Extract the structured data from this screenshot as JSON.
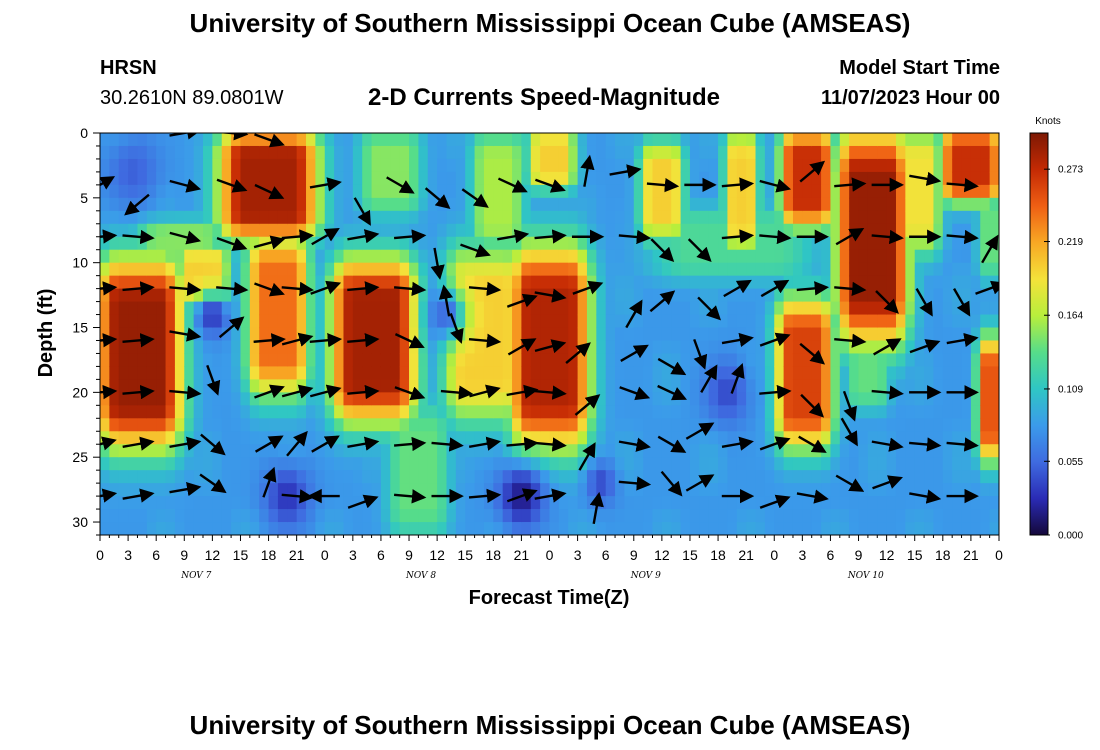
{
  "header": {
    "title": "University of Southern Mississippi Ocean Cube (AMSEAS)",
    "station": "HRSN",
    "location": "30.2610N  89.0801W",
    "subtitle": "2-D Currents Speed-Magnitude",
    "model_start_label": "Model Start Time",
    "model_start_value": "11/07/2023 Hour 00"
  },
  "footer": {
    "title": "University of Southern Mississippi Ocean Cube (AMSEAS)"
  },
  "chart_data": {
    "type": "heatmap",
    "xlabel": "Forecast Time(Z)",
    "ylabel": "Depth (ft)",
    "x_ticks": [
      "0",
      "3",
      "6",
      "9",
      "12",
      "15",
      "18",
      "21",
      "0",
      "3",
      "6",
      "9",
      "12",
      "15",
      "18",
      "21",
      "0",
      "3",
      "6",
      "9",
      "12",
      "15",
      "18",
      "21",
      "0",
      "3",
      "6",
      "9",
      "12",
      "15",
      "18",
      "21",
      "0"
    ],
    "x_hours_range": [
      0,
      96
    ],
    "day_labels": [
      {
        "label": "NOV 7",
        "hour": 9
      },
      {
        "label": "NOV 8",
        "hour": 33
      },
      {
        "label": "NOV 9",
        "hour": 57
      },
      {
        "label": "NOV 10",
        "hour": 80.5
      }
    ],
    "y_ticks": [
      0,
      5,
      10,
      15,
      20,
      25,
      30
    ],
    "y_range": [
      0,
      31
    ],
    "y_inverted": true,
    "colorbar": {
      "unit": "Knots",
      "ticks": [
        "0.273",
        "0.219",
        "0.164",
        "0.109",
        "0.055",
        "0.000"
      ],
      "tick_values": [
        0.273,
        0.219,
        0.164,
        0.109,
        0.055,
        0.0
      ],
      "range": [
        0.0,
        0.3
      ],
      "colors": [
        "#14083a",
        "#2a2bb5",
        "#3f6be0",
        "#3b9bea",
        "#2fc6c4",
        "#56dd8a",
        "#b8ee3c",
        "#f4e23a",
        "#f8a824",
        "#ef5f14",
        "#c42a04",
        "#7d1904"
      ]
    },
    "speed_blobs": [
      {
        "x0": 0,
        "x1": 8.5,
        "y0": 10,
        "y1": 24,
        "v": 0.29
      },
      {
        "x0": 8.5,
        "x1": 13.5,
        "y0": 9,
        "y1": 13,
        "v": 0.2
      },
      {
        "x0": 13,
        "x1": 23,
        "y0": 0,
        "y1": 8,
        "v": 0.285
      },
      {
        "x0": 16,
        "x1": 22,
        "y0": 8,
        "y1": 20,
        "v": 0.24
      },
      {
        "x0": 4,
        "x1": 13,
        "y0": 7,
        "y1": 10,
        "v": 0.15
      },
      {
        "x0": 25,
        "x1": 33.5,
        "y0": 10,
        "y1": 22,
        "v": 0.285
      },
      {
        "x0": 28,
        "x1": 34,
        "y0": 0,
        "y1": 6,
        "v": 0.15
      },
      {
        "x0": 40,
        "x1": 45,
        "y0": 0,
        "y1": 9,
        "v": 0.16
      },
      {
        "x0": 37,
        "x1": 45,
        "y0": 9,
        "y1": 22,
        "v": 0.2
      },
      {
        "x0": 44,
        "x1": 52,
        "y0": 9,
        "y1": 24,
        "v": 0.28
      },
      {
        "x0": 46,
        "x1": 50.5,
        "y0": 0,
        "y1": 4,
        "v": 0.2
      },
      {
        "x0": 58,
        "x1": 62,
        "y0": 1,
        "y1": 8,
        "v": 0.2
      },
      {
        "x0": 67,
        "x1": 70,
        "y0": 0,
        "y1": 9,
        "v": 0.2
      },
      {
        "x0": 73,
        "x1": 78,
        "y0": 0,
        "y1": 7,
        "v": 0.27
      },
      {
        "x0": 72.5,
        "x1": 78,
        "y0": 13,
        "y1": 24,
        "v": 0.26
      },
      {
        "x0": 79,
        "x1": 86,
        "y0": 0,
        "y1": 16,
        "v": 0.29
      },
      {
        "x0": 85,
        "x1": 89.5,
        "y0": 0,
        "y1": 9,
        "v": 0.19
      },
      {
        "x0": 90,
        "x1": 96,
        "y0": 0,
        "y1": 5,
        "v": 0.27
      },
      {
        "x0": 94,
        "x1": 96,
        "y0": 16,
        "y1": 25,
        "v": 0.25
      },
      {
        "x0": 94,
        "x1": 96,
        "y0": 5,
        "y1": 11,
        "v": 0.14
      },
      {
        "x0": 80,
        "x1": 84,
        "y0": 16,
        "y1": 21,
        "v": 0.14
      },
      {
        "x0": 59,
        "x1": 76,
        "y0": 6,
        "y1": 11,
        "v": 0.13
      },
      {
        "x0": 31,
        "x1": 37,
        "y0": 21,
        "y1": 31,
        "v": 0.14
      }
    ],
    "low_spots": [
      {
        "x": 3.5,
        "y": 3,
        "r": 3.5,
        "v": 0.05
      },
      {
        "x": 12,
        "y": 14,
        "r": 2,
        "v": 0.03
      },
      {
        "x": 20,
        "y": 28,
        "r": 3,
        "v": 0.03
      },
      {
        "x": 45,
        "y": 28,
        "r": 3,
        "v": 0.015
      },
      {
        "x": 53.5,
        "y": 27,
        "r": 2,
        "v": 0.04
      },
      {
        "x": 67,
        "y": 20,
        "r": 3,
        "v": 0.04
      },
      {
        "x": 37,
        "y": 14,
        "r": 2.5,
        "v": 0.05
      }
    ],
    "vectors": [
      {
        "t": 0,
        "d": 4,
        "a": -30
      },
      {
        "t": 4,
        "d": 5.5,
        "a": 140
      },
      {
        "t": 9,
        "d": 0,
        "a": -10
      },
      {
        "t": 14,
        "d": 0,
        "a": 5
      },
      {
        "t": 18,
        "d": 0.5,
        "a": 20
      },
      {
        "t": 9,
        "d": 4,
        "a": 15
      },
      {
        "t": 14,
        "d": 4,
        "a": 20
      },
      {
        "t": 18,
        "d": 4.5,
        "a": 25
      },
      {
        "t": 0,
        "d": 8,
        "a": -5
      },
      {
        "t": 4,
        "d": 8,
        "a": 5
      },
      {
        "t": 9,
        "d": 8,
        "a": 15
      },
      {
        "t": 14,
        "d": 8.5,
        "a": 20
      },
      {
        "t": 18,
        "d": 8.5,
        "a": -15
      },
      {
        "t": 21,
        "d": 8,
        "a": -5
      },
      {
        "t": 0,
        "d": 12,
        "a": -5
      },
      {
        "t": 4,
        "d": 12,
        "a": -5
      },
      {
        "t": 9,
        "d": 12,
        "a": 5
      },
      {
        "t": 14,
        "d": 12,
        "a": 5
      },
      {
        "t": 18,
        "d": 12,
        "a": 20
      },
      {
        "t": 21,
        "d": 12,
        "a": 5
      },
      {
        "t": 0,
        "d": 16,
        "a": -5
      },
      {
        "t": 4,
        "d": 16,
        "a": -5
      },
      {
        "t": 9,
        "d": 15.5,
        "a": 10
      },
      {
        "t": 14,
        "d": 15,
        "a": -40
      },
      {
        "t": 18,
        "d": 16,
        "a": -5
      },
      {
        "t": 21,
        "d": 16,
        "a": -15
      },
      {
        "t": 0,
        "d": 20,
        "a": -5
      },
      {
        "t": 4,
        "d": 20,
        "a": -5
      },
      {
        "t": 9,
        "d": 20,
        "a": 5
      },
      {
        "t": 12,
        "d": 19,
        "a": 70
      },
      {
        "t": 18,
        "d": 20,
        "a": -20
      },
      {
        "t": 21,
        "d": 20,
        "a": -15
      },
      {
        "t": 0,
        "d": 24,
        "a": -15
      },
      {
        "t": 4,
        "d": 24,
        "a": -10
      },
      {
        "t": 9,
        "d": 24,
        "a": -10
      },
      {
        "t": 12,
        "d": 24,
        "a": 40
      },
      {
        "t": 18,
        "d": 24,
        "a": -30
      },
      {
        "t": 21,
        "d": 24,
        "a": -50
      },
      {
        "t": 0,
        "d": 28,
        "a": -10
      },
      {
        "t": 4,
        "d": 28,
        "a": -10
      },
      {
        "t": 9,
        "d": 27.5,
        "a": -10
      },
      {
        "t": 12,
        "d": 27,
        "a": 35
      },
      {
        "t": 18,
        "d": 27,
        "a": -70
      },
      {
        "t": 21,
        "d": 28,
        "a": 5
      },
      {
        "t": 24,
        "d": 4,
        "a": -10
      },
      {
        "t": 28,
        "d": 6,
        "a": 60
      },
      {
        "t": 32,
        "d": 4,
        "a": 30
      },
      {
        "t": 36,
        "d": 5,
        "a": 40
      },
      {
        "t": 40,
        "d": 5,
        "a": 35
      },
      {
        "t": 44,
        "d": 4,
        "a": 25
      },
      {
        "t": 24,
        "d": 8,
        "a": -30
      },
      {
        "t": 28,
        "d": 8,
        "a": -10
      },
      {
        "t": 33,
        "d": 8,
        "a": -5
      },
      {
        "t": 36,
        "d": 10,
        "a": 80
      },
      {
        "t": 40,
        "d": 9,
        "a": 20
      },
      {
        "t": 44,
        "d": 8,
        "a": -10
      },
      {
        "t": 24,
        "d": 12,
        "a": -20
      },
      {
        "t": 28,
        "d": 12,
        "a": -5
      },
      {
        "t": 33,
        "d": 12,
        "a": 5
      },
      {
        "t": 37,
        "d": 13,
        "a": -100
      },
      {
        "t": 41,
        "d": 12,
        "a": 5
      },
      {
        "t": 45,
        "d": 13,
        "a": -20
      },
      {
        "t": 24,
        "d": 16,
        "a": -5
      },
      {
        "t": 28,
        "d": 16,
        "a": -5
      },
      {
        "t": 33,
        "d": 16,
        "a": 25
      },
      {
        "t": 38,
        "d": 15,
        "a": 70
      },
      {
        "t": 41,
        "d": 16,
        "a": 5
      },
      {
        "t": 45,
        "d": 16.5,
        "a": -30
      },
      {
        "t": 24,
        "d": 20,
        "a": -15
      },
      {
        "t": 28,
        "d": 20,
        "a": -5
      },
      {
        "t": 33,
        "d": 20,
        "a": 20
      },
      {
        "t": 38,
        "d": 20,
        "a": 5
      },
      {
        "t": 41,
        "d": 20,
        "a": -15
      },
      {
        "t": 45,
        "d": 20,
        "a": -10
      },
      {
        "t": 24,
        "d": 24,
        "a": -30
      },
      {
        "t": 28,
        "d": 24,
        "a": -10
      },
      {
        "t": 33,
        "d": 24,
        "a": -5
      },
      {
        "t": 37,
        "d": 24,
        "a": 5
      },
      {
        "t": 41,
        "d": 24,
        "a": -10
      },
      {
        "t": 45,
        "d": 24,
        "a": -5
      },
      {
        "t": 24,
        "d": 28,
        "a": 180
      },
      {
        "t": 28,
        "d": 28.5,
        "a": -20
      },
      {
        "t": 33,
        "d": 28,
        "a": 5
      },
      {
        "t": 37,
        "d": 28,
        "a": 0
      },
      {
        "t": 41,
        "d": 28,
        "a": -5
      },
      {
        "t": 45,
        "d": 28,
        "a": -20
      },
      {
        "t": 48,
        "d": 4,
        "a": 20
      },
      {
        "t": 52,
        "d": 3,
        "a": -80
      },
      {
        "t": 56,
        "d": 3,
        "a": -10
      },
      {
        "t": 60,
        "d": 4,
        "a": 5
      },
      {
        "t": 64,
        "d": 4,
        "a": 0
      },
      {
        "t": 68,
        "d": 4,
        "a": -5
      },
      {
        "t": 48,
        "d": 8,
        "a": -5
      },
      {
        "t": 52,
        "d": 8,
        "a": 0
      },
      {
        "t": 57,
        "d": 8,
        "a": 5
      },
      {
        "t": 60,
        "d": 9,
        "a": 45
      },
      {
        "t": 64,
        "d": 9,
        "a": 45
      },
      {
        "t": 68,
        "d": 8,
        "a": -5
      },
      {
        "t": 48,
        "d": 12.5,
        "a": 10
      },
      {
        "t": 52,
        "d": 12,
        "a": -20
      },
      {
        "t": 57,
        "d": 14,
        "a": -60
      },
      {
        "t": 60,
        "d": 13,
        "a": -40
      },
      {
        "t": 65,
        "d": 13.5,
        "a": 45
      },
      {
        "t": 68,
        "d": 12,
        "a": -30
      },
      {
        "t": 48,
        "d": 16.5,
        "a": -15
      },
      {
        "t": 51,
        "d": 17,
        "a": -40
      },
      {
        "t": 57,
        "d": 17,
        "a": -30
      },
      {
        "t": 61,
        "d": 18,
        "a": 30
      },
      {
        "t": 64,
        "d": 17,
        "a": 70
      },
      {
        "t": 68,
        "d": 16,
        "a": -10
      },
      {
        "t": 48,
        "d": 20,
        "a": 5
      },
      {
        "t": 52,
        "d": 21,
        "a": -40
      },
      {
        "t": 57,
        "d": 20,
        "a": 20
      },
      {
        "t": 61,
        "d": 20,
        "a": 25
      },
      {
        "t": 65,
        "d": 19,
        "a": -60
      },
      {
        "t": 68,
        "d": 19,
        "a": -70
      },
      {
        "t": 48,
        "d": 24,
        "a": 5
      },
      {
        "t": 52,
        "d": 25,
        "a": -60
      },
      {
        "t": 57,
        "d": 24,
        "a": 10
      },
      {
        "t": 61,
        "d": 24,
        "a": 30
      },
      {
        "t": 64,
        "d": 23,
        "a": -30
      },
      {
        "t": 68,
        "d": 24,
        "a": -10
      },
      {
        "t": 48,
        "d": 28,
        "a": -10
      },
      {
        "t": 53,
        "d": 29,
        "a": -80
      },
      {
        "t": 57,
        "d": 27,
        "a": 5
      },
      {
        "t": 61,
        "d": 27,
        "a": 50
      },
      {
        "t": 64,
        "d": 27,
        "a": -30
      },
      {
        "t": 68,
        "d": 28,
        "a": 0
      },
      {
        "t": 72,
        "d": 4,
        "a": 15
      },
      {
        "t": 76,
        "d": 3,
        "a": -40
      },
      {
        "t": 80,
        "d": 4,
        "a": -5
      },
      {
        "t": 84,
        "d": 4,
        "a": 0
      },
      {
        "t": 88,
        "d": 3.5,
        "a": 10
      },
      {
        "t": 92,
        "d": 4,
        "a": 5
      },
      {
        "t": 72,
        "d": 8,
        "a": 5
      },
      {
        "t": 76,
        "d": 8,
        "a": 0
      },
      {
        "t": 80,
        "d": 8,
        "a": -30
      },
      {
        "t": 84,
        "d": 8,
        "a": 5
      },
      {
        "t": 88,
        "d": 8,
        "a": 0
      },
      {
        "t": 92,
        "d": 8,
        "a": 5
      },
      {
        "t": 95,
        "d": 9,
        "a": -60
      },
      {
        "t": 72,
        "d": 12,
        "a": -30
      },
      {
        "t": 76,
        "d": 12,
        "a": -5
      },
      {
        "t": 80,
        "d": 12,
        "a": 5
      },
      {
        "t": 84,
        "d": 13,
        "a": 45
      },
      {
        "t": 88,
        "d": 13,
        "a": 60
      },
      {
        "t": 92,
        "d": 13,
        "a": 60
      },
      {
        "t": 95,
        "d": 12,
        "a": -20
      },
      {
        "t": 72,
        "d": 16,
        "a": -20
      },
      {
        "t": 76,
        "d": 17,
        "a": 40
      },
      {
        "t": 80,
        "d": 16,
        "a": 5
      },
      {
        "t": 84,
        "d": 16.5,
        "a": -30
      },
      {
        "t": 88,
        "d": 16.5,
        "a": -20
      },
      {
        "t": 92,
        "d": 16,
        "a": -10
      },
      {
        "t": 72,
        "d": 20,
        "a": -5
      },
      {
        "t": 76,
        "d": 21,
        "a": 45
      },
      {
        "t": 80,
        "d": 21,
        "a": 70
      },
      {
        "t": 84,
        "d": 20,
        "a": 5
      },
      {
        "t": 88,
        "d": 20,
        "a": 0
      },
      {
        "t": 92,
        "d": 20,
        "a": 0
      },
      {
        "t": 72,
        "d": 24,
        "a": -20
      },
      {
        "t": 76,
        "d": 24,
        "a": 30
      },
      {
        "t": 80,
        "d": 23,
        "a": 60
      },
      {
        "t": 84,
        "d": 24,
        "a": 10
      },
      {
        "t": 88,
        "d": 24,
        "a": 5
      },
      {
        "t": 92,
        "d": 24,
        "a": 5
      },
      {
        "t": 72,
        "d": 28.5,
        "a": -20
      },
      {
        "t": 76,
        "d": 28,
        "a": 10
      },
      {
        "t": 80,
        "d": 27,
        "a": 30
      },
      {
        "t": 84,
        "d": 27,
        "a": -20
      },
      {
        "t": 88,
        "d": 28,
        "a": 10
      },
      {
        "t": 92,
        "d": 28,
        "a": 0
      }
    ]
  }
}
